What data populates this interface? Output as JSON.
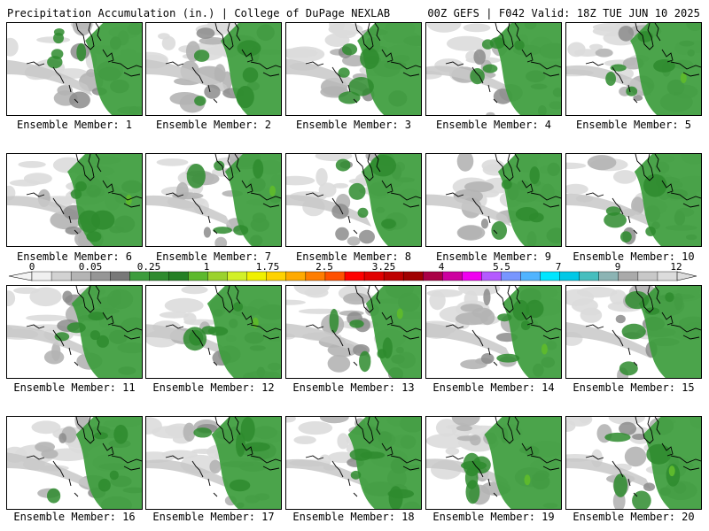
{
  "header": {
    "title": "Precipitation Accumulation (in.) | College of DuPage NEXLAB",
    "run_info": "00Z GEFS | F042 Valid: 18Z TUE JUN 10 2025"
  },
  "members": [
    {
      "label": "Ensemble Member: 1"
    },
    {
      "label": "Ensemble Member: 2"
    },
    {
      "label": "Ensemble Member: 3"
    },
    {
      "label": "Ensemble Member: 4"
    },
    {
      "label": "Ensemble Member: 5"
    },
    {
      "label": "Ensemble Member: 6"
    },
    {
      "label": "Ensemble Member: 7"
    },
    {
      "label": "Ensemble Member: 8"
    },
    {
      "label": "Ensemble Member: 9"
    },
    {
      "label": "Ensemble Member: 10"
    },
    {
      "label": "Ensemble Member: 11"
    },
    {
      "label": "Ensemble Member: 12"
    },
    {
      "label": "Ensemble Member: 13"
    },
    {
      "label": "Ensemble Member: 14"
    },
    {
      "label": "Ensemble Member: 15"
    },
    {
      "label": "Ensemble Member: 16"
    },
    {
      "label": "Ensemble Member: 17"
    },
    {
      "label": "Ensemble Member: 18"
    },
    {
      "label": "Ensemble Member: 19"
    },
    {
      "label": "Ensemble Member: 20"
    }
  ],
  "colorbar": {
    "labels": [
      "0",
      "0.05",
      "0.25",
      "1",
      "1.75",
      "2.5",
      "3.25",
      "4",
      "5.5",
      "7",
      "9",
      "12"
    ],
    "colors": [
      "#f0f0f0",
      "#d2d2d2",
      "#b4b4b4",
      "#969696",
      "#787878",
      "#3c9c3c",
      "#2e8b2e",
      "#248024",
      "#5db92d",
      "#9bd22d",
      "#d2f028",
      "#f0f000",
      "#ffd200",
      "#ffaa00",
      "#ff7d00",
      "#ff5000",
      "#ff0000",
      "#e10000",
      "#be0000",
      "#a00000",
      "#aa0046",
      "#cd00a0",
      "#f000f0",
      "#b45aff",
      "#7896ff",
      "#50b4ff",
      "#00e6ff",
      "#00c8e6",
      "#46bebe",
      "#8cb4b4",
      "#aaaaaa",
      "#c8c8c8",
      "#dcdcdc"
    ]
  }
}
